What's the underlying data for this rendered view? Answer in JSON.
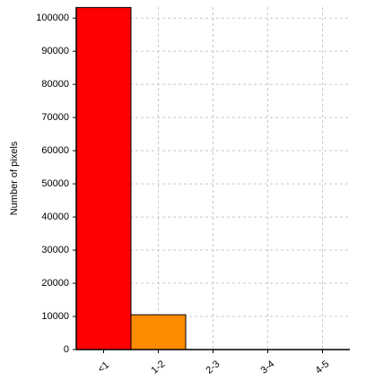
{
  "chart_data": {
    "type": "bar",
    "y_label": "Number of pixels",
    "categories": [
      "<1",
      "1-2",
      "2-3",
      "3-4",
      "4-5"
    ],
    "values": [
      103200,
      10500,
      0,
      0,
      0
    ],
    "colors": [
      "#ff0000",
      "#ff8c00",
      "#ffd000",
      "#ffff00",
      "#c8ff00"
    ],
    "ylim": [
      0,
      103300
    ],
    "yticks": [
      0,
      10000,
      20000,
      30000,
      40000,
      50000,
      60000,
      70000,
      80000,
      90000,
      100000
    ],
    "grid": true
  }
}
